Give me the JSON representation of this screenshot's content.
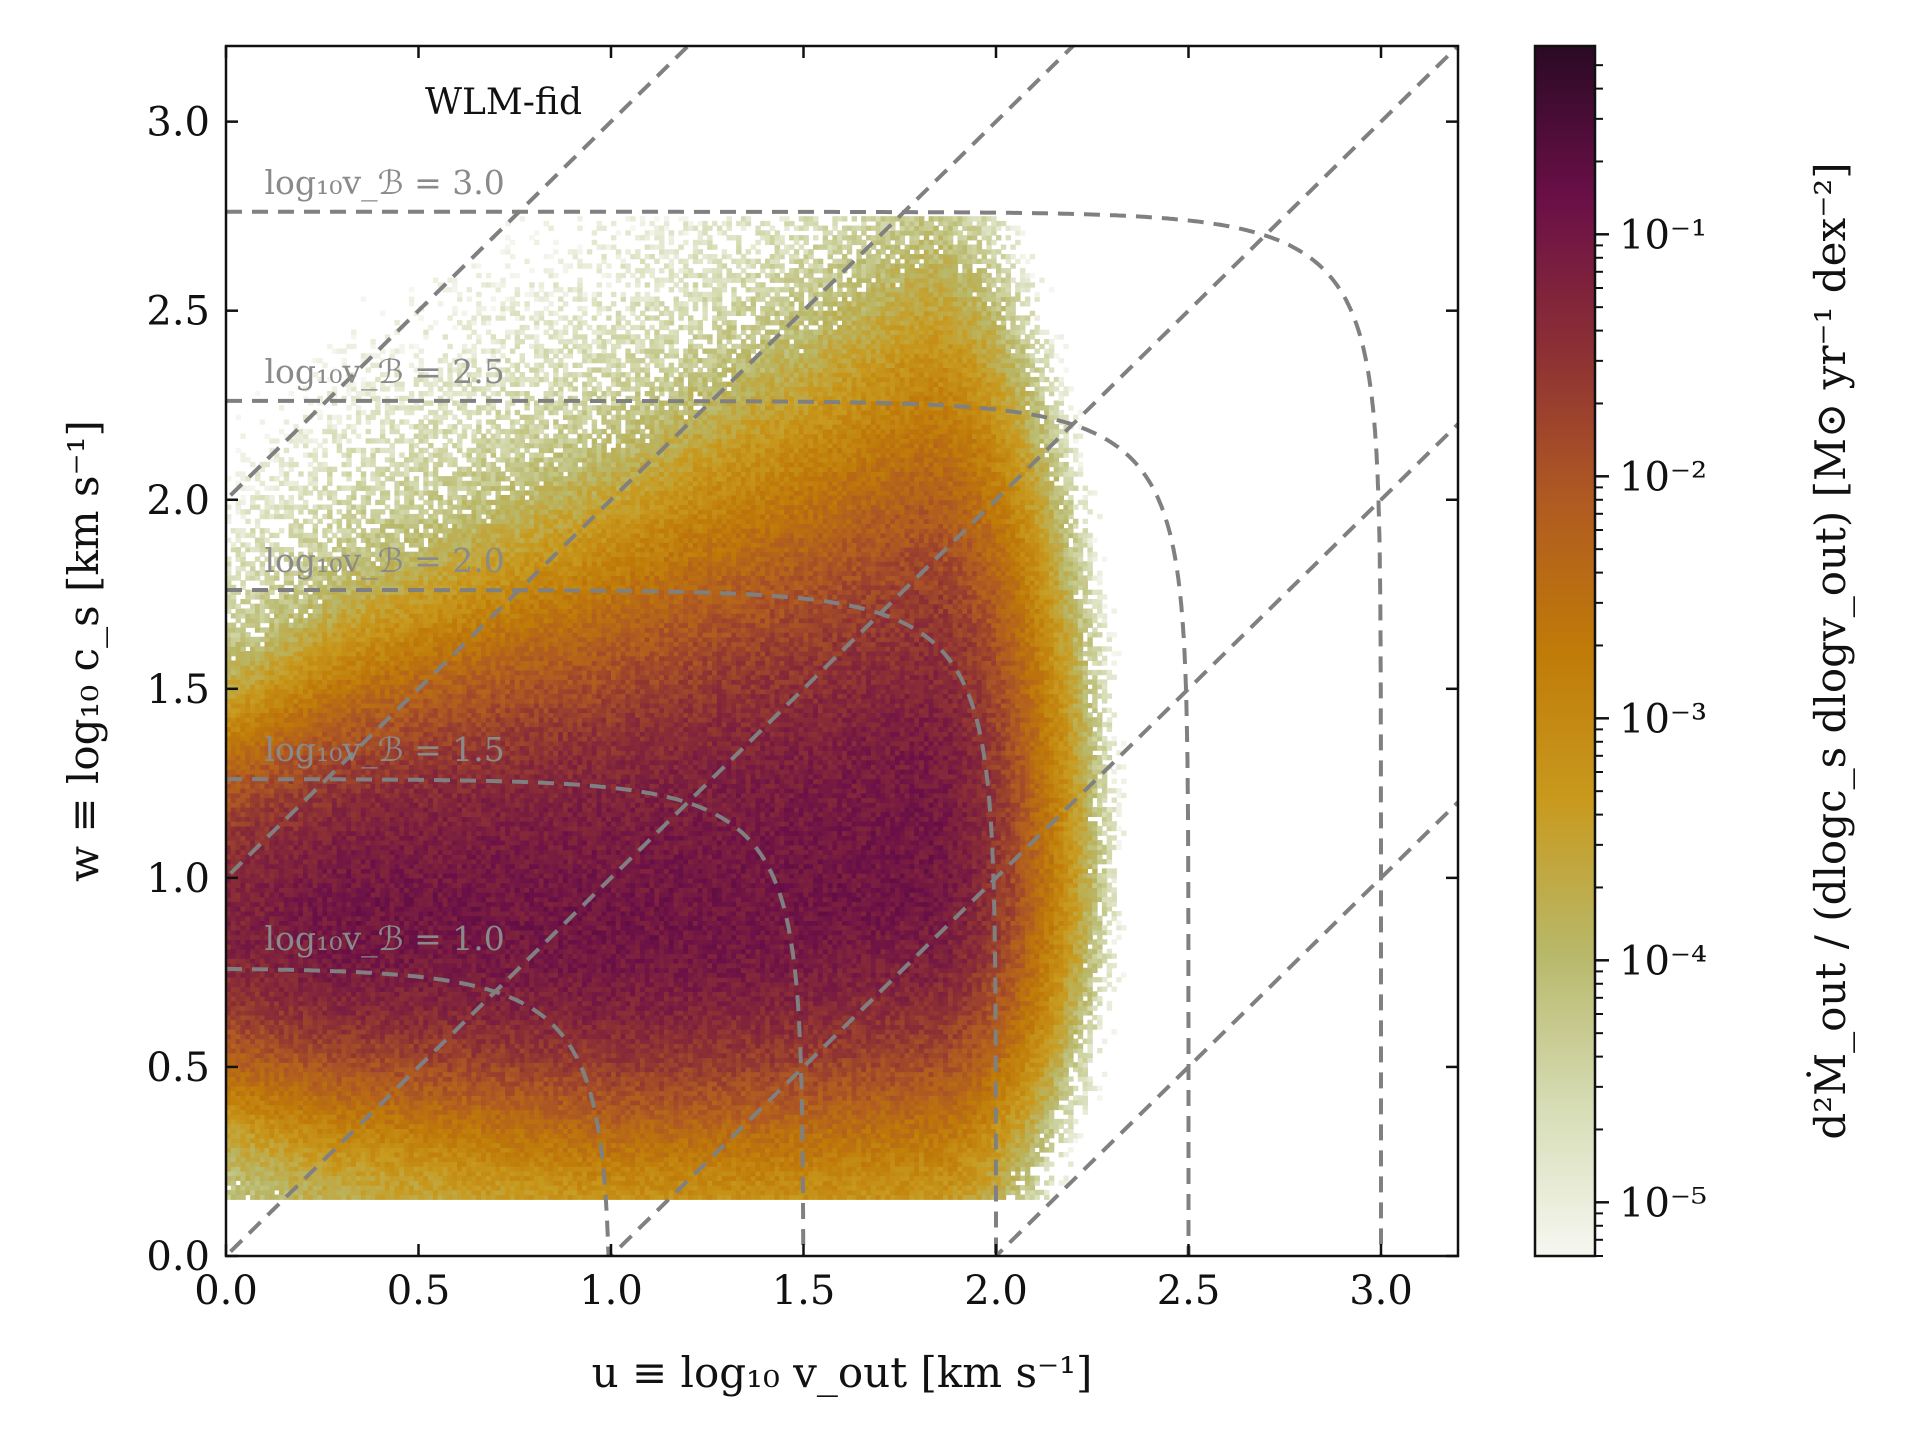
{
  "chart_data": {
    "type": "heatmap",
    "title": "",
    "annotation": "WLM-fid",
    "xlabel": "u ≡ log₁₀ v_out [km s⁻¹]",
    "ylabel": "w ≡ log₁₀ c_s [km s⁻¹]",
    "xlim": [
      0.0,
      3.2
    ],
    "ylim": [
      0.0,
      3.2
    ],
    "x_ticks": [
      "0.0",
      "0.5",
      "1.0",
      "1.5",
      "2.0",
      "2.5",
      "3.0"
    ],
    "y_ticks": [
      "0.0",
      "0.5",
      "1.0",
      "1.5",
      "2.0",
      "2.5",
      "3.0"
    ],
    "grid": false,
    "colorbar": {
      "label": "d²Ṁ_out / (dlogc_s dlogv_out) [M⊙ yr⁻¹ dex⁻²]",
      "scale": "log",
      "range": [
        6e-06,
        0.6
      ],
      "ticks": [
        "10⁻⁵",
        "10⁻⁴",
        "10⁻³",
        "10⁻²",
        "10⁻¹"
      ],
      "colors": [
        "#f7f7f2",
        "#d6dcb4",
        "#b8b86a",
        "#c89a1e",
        "#c07b08",
        "#b05a22",
        "#8c2f35",
        "#6a0f48",
        "#2a0a24"
      ]
    },
    "density_model": {
      "ridge": [
        {
          "u": 0.0,
          "w": 0.88
        },
        {
          "u": 0.5,
          "w": 0.88
        },
        {
          "u": 1.0,
          "w": 0.86
        },
        {
          "u": 1.5,
          "w": 0.93
        },
        {
          "u": 1.8,
          "w": 1.0
        },
        {
          "u": 2.0,
          "w": 1.02
        }
      ],
      "peak_value": 0.14,
      "u_extent": [
        0.0,
        2.3
      ],
      "w_extent": [
        0.2,
        2.7
      ]
    },
    "bernoulli_curves": [
      {
        "label": "log₁₀v_ℬ = 3.0",
        "log10_vB": 3.0
      },
      {
        "label": "log₁₀v_ℬ = 2.5",
        "log10_vB": 2.5
      },
      {
        "label": "log₁₀v_ℬ = 2.0",
        "log10_vB": 2.0
      },
      {
        "label": "log₁₀v_ℬ = 1.5",
        "log10_vB": 1.5
      },
      {
        "label": "log₁₀v_ℬ = 1.0",
        "log10_vB": 1.0
      }
    ],
    "diagonal_lines": [
      {
        "intercept": 2.0
      },
      {
        "intercept": 1.0
      },
      {
        "intercept": 0.0
      },
      {
        "intercept": -1.0
      },
      {
        "intercept": -2.0
      }
    ],
    "line_color": "#808080"
  }
}
